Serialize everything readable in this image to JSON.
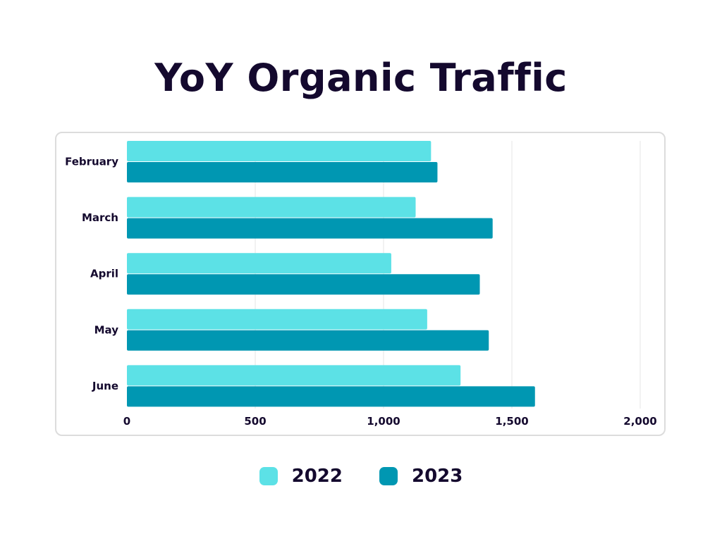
{
  "chart_data": {
    "type": "bar",
    "orientation": "horizontal",
    "title": "YoY Organic Traffic",
    "categories": [
      "February",
      "March",
      "April",
      "May",
      "June"
    ],
    "series": [
      {
        "name": "2022",
        "values": [
          1185,
          1125,
          1030,
          1170,
          1300
        ],
        "color": "#5ce1e6"
      },
      {
        "name": "2023",
        "values": [
          1210,
          1425,
          1375,
          1410,
          1590
        ],
        "color": "#0097b2"
      }
    ],
    "xlim": [
      0,
      2000
    ],
    "xticks": [
      0,
      500,
      1000,
      1500,
      2000
    ],
    "xtick_labels": [
      "0",
      "500",
      "1,000",
      "1,500",
      "2,000"
    ],
    "grid": true,
    "legend_position": "bottom"
  }
}
